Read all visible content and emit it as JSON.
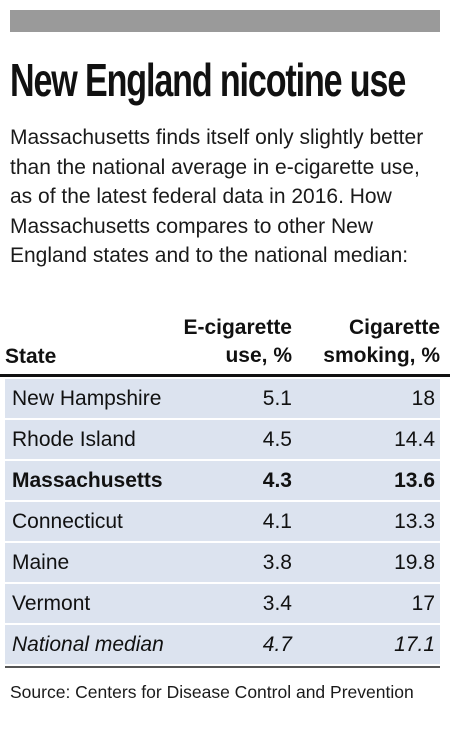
{
  "title": "New England nicotine use",
  "intro": "Massachusetts finds itself only slightly better than the national average in e-cigarette use, as of the latest federal data in 2016. How Massachusetts compares to other New England states and to the national median:",
  "source": "Source: Centers for Disease Control and Prevention",
  "colors": {
    "top_bar": "#9a9a9a",
    "row_fill": "#dce3ef",
    "text": "#111111"
  },
  "chart_data": {
    "type": "table",
    "title": "New England nicotine use",
    "columns": {
      "state": "State",
      "ecig_line1": "E-cigarette",
      "ecig_line2": "use, %",
      "cig_line1": "Cigarette",
      "cig_line2": "smoking, %"
    },
    "rows": [
      {
        "state": "New Hampshire",
        "ecig": "5.1",
        "cig": "18",
        "emphasis": "normal"
      },
      {
        "state": "Rhode Island",
        "ecig": "4.5",
        "cig": "14.4",
        "emphasis": "normal"
      },
      {
        "state": "Massachusetts",
        "ecig": "4.3",
        "cig": "13.6",
        "emphasis": "bold"
      },
      {
        "state": "Connecticut",
        "ecig": "4.1",
        "cig": "13.3",
        "emphasis": "normal"
      },
      {
        "state": "Maine",
        "ecig": "3.8",
        "cig": "19.8",
        "emphasis": "normal"
      },
      {
        "state": "Vermont",
        "ecig": "3.4",
        "cig": "17",
        "emphasis": "normal"
      },
      {
        "state": "National median",
        "ecig": "4.7",
        "cig": "17.1",
        "emphasis": "italic"
      }
    ]
  }
}
